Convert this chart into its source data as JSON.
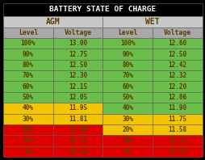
{
  "title": "BATTERY STATE OF CHARGE",
  "sub_headers": [
    "Level",
    "Voltage",
    "Level",
    "Voltage"
  ],
  "rows": [
    [
      "100%",
      "13.00",
      "100%",
      "12.60"
    ],
    [
      "90%",
      "12.75",
      "90%",
      "12.50"
    ],
    [
      "80%",
      "12.50",
      "80%",
      "12.42"
    ],
    [
      "70%",
      "12.30",
      "70%",
      "12.32"
    ],
    [
      "60%",
      "12.15",
      "60%",
      "12.20"
    ],
    [
      "50%",
      "12.05",
      "50%",
      "12.06"
    ],
    [
      "40%",
      "11.95",
      "40%",
      "11.90"
    ],
    [
      "30%",
      "11.81",
      "30%",
      "11.75"
    ],
    [
      "20%",
      "11.66",
      "20%",
      "11.58"
    ],
    [
      "10%",
      "11.51",
      "10%",
      "11.31"
    ],
    [
      "0%",
      "10.50",
      "0%",
      "10.50"
    ]
  ],
  "row_colors_agm": [
    "#6abf4b",
    "#6abf4b",
    "#6abf4b",
    "#6abf4b",
    "#6abf4b",
    "#6abf4b",
    "#f5c400",
    "#f5c400",
    "#e00000",
    "#e00000",
    "#e00000"
  ],
  "row_colors_wet": [
    "#6abf4b",
    "#6abf4b",
    "#6abf4b",
    "#6abf4b",
    "#6abf4b",
    "#6abf4b",
    "#6abf4b",
    "#f5c400",
    "#f5c400",
    "#e00000",
    "#e00000"
  ],
  "title_bg": "#000000",
  "title_fg": "#ffffff",
  "header_bg": "#c8c8c8",
  "header_fg": "#5a3e00",
  "subheader_bg": "#a8a8a8",
  "subheader_fg": "#5a3e00",
  "cell_text_color": "#5a3e00",
  "outer_bg": "#000000",
  "border_color": "#666666"
}
